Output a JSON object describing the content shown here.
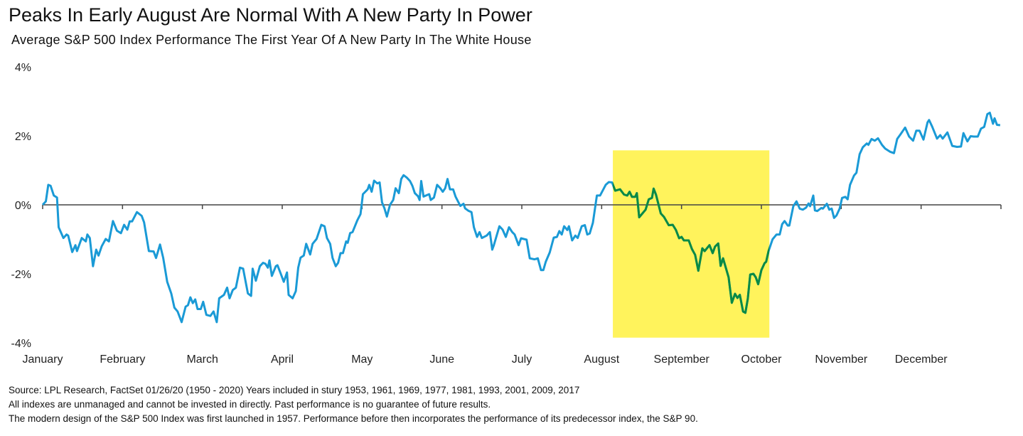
{
  "chart_data": {
    "type": "line",
    "title": "Peaks In Early August Are Normal With A New Party In Power",
    "subtitle": "Average S&P 500 Index Performance The First Year Of A New Party In The White House",
    "xlabel": "",
    "ylabel": "",
    "x_unit": "months elapsed since January 1",
    "xlim": [
      0,
      12
    ],
    "ylim": [
      -4,
      4
    ],
    "y_ticks": [
      {
        "value": 4,
        "label": "4%"
      },
      {
        "value": 2,
        "label": "2%"
      },
      {
        "value": 0,
        "label": "0%"
      },
      {
        "value": -2,
        "label": "-2%"
      },
      {
        "value": -4,
        "label": "-4%"
      }
    ],
    "x_ticks": [
      {
        "value": 0,
        "label": "January"
      },
      {
        "value": 1,
        "label": "February"
      },
      {
        "value": 2,
        "label": "March"
      },
      {
        "value": 3,
        "label": "April"
      },
      {
        "value": 4,
        "label": "May"
      },
      {
        "value": 5,
        "label": "June"
      },
      {
        "value": 6,
        "label": "July"
      },
      {
        "value": 7,
        "label": "August"
      },
      {
        "value": 8,
        "label": "September"
      },
      {
        "value": 9,
        "label": "October"
      },
      {
        "value": 10,
        "label": "November"
      },
      {
        "value": 11,
        "label": "December"
      },
      {
        "value": 12,
        "label": ""
      }
    ],
    "grid": false,
    "legend": "none",
    "colors": {
      "line": "#1a9ad6",
      "highlight_line": "#0a8a45",
      "highlight_fill": "#fff35c",
      "axis": "#444444"
    },
    "highlight": {
      "x_range": [
        7.14,
        9.1
      ],
      "y_range": [
        -3.85,
        1.58
      ]
    },
    "series": [
      {
        "x": [
          0.0,
          0.04,
          0.07,
          0.1,
          0.14,
          0.18,
          0.2,
          0.26,
          0.3,
          0.32,
          0.37,
          0.41,
          0.43,
          0.49,
          0.54,
          0.56,
          0.59,
          0.63,
          0.67,
          0.7,
          0.74,
          0.79,
          0.83,
          0.88,
          0.93,
          0.98,
          1.02,
          1.06,
          1.09,
          1.12,
          1.18,
          1.24,
          1.27,
          1.33,
          1.39,
          1.42,
          1.47,
          1.51,
          1.56,
          1.61,
          1.65,
          1.69,
          1.74,
          1.79,
          1.82,
          1.85,
          1.88,
          1.91,
          1.94,
          1.98,
          2.01,
          2.05,
          2.1,
          2.14,
          2.18,
          2.21,
          2.27,
          2.31,
          2.34,
          2.38,
          2.42,
          2.47,
          2.51,
          2.57,
          2.61,
          2.63,
          2.67,
          2.72,
          2.76,
          2.79,
          2.82,
          2.84,
          2.87,
          2.92,
          2.94,
          2.98,
          3.02,
          3.06,
          3.08,
          3.13,
          3.17,
          3.2,
          3.23,
          3.27,
          3.3,
          3.35,
          3.38,
          3.43,
          3.49,
          3.53,
          3.56,
          3.6,
          3.63,
          3.67,
          3.7,
          3.73,
          3.76,
          3.8,
          3.82,
          3.85,
          3.88,
          3.94,
          3.98,
          4.01,
          4.07,
          4.09,
          4.12,
          4.15,
          4.19,
          4.22,
          4.25,
          4.28,
          4.31,
          4.35,
          4.39,
          4.42,
          4.46,
          4.49,
          4.52,
          4.56,
          4.6,
          4.63,
          4.66,
          4.7,
          4.72,
          4.74,
          4.77,
          4.8,
          4.84,
          4.86,
          4.9,
          4.94,
          4.98,
          5.01,
          5.04,
          5.07,
          5.1,
          5.14,
          5.17,
          5.23,
          5.27,
          5.29,
          5.33,
          5.37,
          5.4,
          5.44,
          5.47,
          5.5,
          5.56,
          5.6,
          5.63,
          5.65,
          5.68,
          5.72,
          5.76,
          5.8,
          5.84,
          5.88,
          5.91,
          5.96,
          5.99,
          6.06,
          6.1,
          6.16,
          6.2,
          6.24,
          6.27,
          6.3,
          6.35,
          6.4,
          6.44,
          6.47,
          6.5,
          6.53,
          6.57,
          6.59,
          6.63,
          6.67,
          6.7,
          6.75,
          6.79,
          6.82,
          6.85,
          6.89,
          6.94,
          6.98,
          7.05,
          7.09,
          7.13,
          7.17,
          7.23,
          7.28,
          7.32,
          7.35,
          7.38,
          7.42,
          7.44,
          7.47,
          7.55,
          7.59,
          7.63,
          7.65,
          7.68,
          7.74,
          7.78,
          7.84,
          7.89,
          7.93,
          7.97,
          8.0,
          8.03,
          8.09,
          8.13,
          8.17,
          8.21,
          8.26,
          8.29,
          8.35,
          8.39,
          8.42,
          8.46,
          8.49,
          8.52,
          8.59,
          8.63,
          8.67,
          8.7,
          8.73,
          8.77,
          8.8,
          8.83,
          8.86,
          8.9,
          8.93,
          8.96,
          9.0,
          9.04,
          9.06,
          9.09,
          9.14,
          9.19,
          9.23,
          9.26,
          9.29,
          9.33,
          9.35,
          9.4,
          9.44,
          9.48,
          9.52,
          9.56,
          9.59,
          9.61,
          9.65,
          9.67,
          9.7,
          9.75,
          9.77,
          9.82,
          9.85,
          9.88,
          9.91,
          9.94,
          9.98,
          10.01,
          10.05,
          10.08,
          10.11,
          10.16,
          10.19,
          10.23,
          10.27,
          10.32,
          10.34,
          10.38,
          10.42,
          10.46,
          10.51,
          10.55,
          10.61,
          10.66,
          10.7,
          10.74,
          10.8,
          10.85,
          10.9,
          10.94,
          10.98,
          11.03,
          11.08,
          11.1,
          11.14,
          11.2,
          11.24,
          11.27,
          11.33,
          11.39,
          11.45,
          11.5,
          11.53,
          11.58,
          11.62,
          11.66,
          11.71,
          11.75,
          11.79,
          11.83,
          11.86,
          11.9,
          11.92,
          11.95,
          11.99
        ],
        "y": [
          0,
          0.1,
          0.58,
          0.55,
          0.27,
          0.21,
          -0.65,
          -0.96,
          -0.86,
          -0.89,
          -1.37,
          -1.17,
          -1.34,
          -0.96,
          -1.06,
          -0.86,
          -0.96,
          -1.78,
          -1.3,
          -1.47,
          -1.2,
          -0.99,
          -1.06,
          -0.47,
          -0.75,
          -0.82,
          -0.58,
          -0.72,
          -0.48,
          -0.48,
          -0.21,
          -0.32,
          -0.51,
          -1.34,
          -1.35,
          -1.54,
          -1.15,
          -1.54,
          -2.23,
          -2.57,
          -2.98,
          -3.09,
          -3.4,
          -2.95,
          -2.91,
          -2.68,
          -2.85,
          -2.74,
          -3.02,
          -3.02,
          -2.81,
          -3.19,
          -3.22,
          -3.09,
          -3.4,
          -2.71,
          -2.61,
          -2.4,
          -2.71,
          -2.47,
          -2.4,
          -1.82,
          -1.85,
          -2.57,
          -2.64,
          -1.85,
          -2.2,
          -1.78,
          -1.68,
          -1.71,
          -1.82,
          -1.61,
          -2.06,
          -1.78,
          -1.75,
          -1.99,
          -2.23,
          -1.96,
          -2.61,
          -2.71,
          -2.5,
          -1.82,
          -1.53,
          -1.47,
          -1.13,
          -1.44,
          -1.13,
          -0.99,
          -0.58,
          -0.62,
          -0.96,
          -1.13,
          -1.54,
          -1.78,
          -1.68,
          -1.4,
          -1.4,
          -1.06,
          -1.1,
          -0.82,
          -0.79,
          -0.45,
          -0.27,
          0.31,
          0.45,
          0.58,
          0.38,
          0.7,
          0.62,
          0.65,
          0.07,
          -0.1,
          -0.34,
          0.0,
          0.14,
          0.48,
          0.34,
          0.75,
          0.86,
          0.79,
          0.69,
          0.55,
          0.34,
          0.25,
          0.14,
          0.69,
          0.24,
          0.27,
          0.31,
          0.14,
          0.21,
          0.58,
          0.48,
          0.38,
          0.48,
          0.75,
          0.45,
          0.45,
          0.24,
          -0.03,
          0.03,
          -0.1,
          -0.17,
          -0.21,
          -0.65,
          -0.93,
          -0.79,
          -0.96,
          -0.89,
          -0.79,
          -1.3,
          -1.17,
          -0.93,
          -0.62,
          -0.72,
          -0.93,
          -0.65,
          -0.79,
          -0.86,
          -1.17,
          -0.97,
          -1.01,
          -1.55,
          -1.58,
          -1.55,
          -1.89,
          -1.89,
          -1.65,
          -1.38,
          -0.95,
          -0.93,
          -0.76,
          -0.86,
          -0.62,
          -0.73,
          -0.62,
          -1.03,
          -0.89,
          -0.96,
          -0.62,
          -0.59,
          -0.86,
          -0.83,
          -0.52,
          0.27,
          0.27,
          0.58,
          0.66,
          0.65,
          0.41,
          0.45,
          0.3,
          0.27,
          0.38,
          0.23,
          0.23,
          0.34,
          -0.36,
          -0.14,
          0.16,
          0.2,
          0.47,
          0.3,
          -0.25,
          -0.35,
          -0.59,
          -0.58,
          -0.73,
          -0.97,
          -0.93,
          -1.03,
          -1.03,
          -1.28,
          -1.45,
          -1.91,
          -1.26,
          -1.34,
          -1.17,
          -1.4,
          -1.21,
          -1.12,
          -1.77,
          -1.55,
          -2.1,
          -2.84,
          -2.58,
          -2.7,
          -2.61,
          -3.09,
          -3.13,
          -2.72,
          -2.02,
          -2.0,
          -2.1,
          -2.3,
          -1.89,
          -1.69,
          -1.65,
          -1.34,
          -1.0,
          -0.86,
          -0.86,
          -0.56,
          -0.47,
          -0.6,
          -0.6,
          -0.04,
          0.1,
          -0.11,
          -0.14,
          -0.08,
          0.04,
          -0.04,
          0.27,
          -0.16,
          -0.18,
          -0.09,
          -0.11,
          0.03,
          -0.14,
          -0.11,
          -0.38,
          -0.31,
          -0.11,
          0.2,
          0.23,
          0.16,
          0.58,
          0.85,
          0.93,
          1.47,
          1.67,
          1.78,
          1.74,
          1.91,
          1.86,
          1.93,
          1.74,
          1.63,
          1.54,
          1.5,
          1.91,
          2.04,
          2.24,
          1.98,
          1.86,
          2.15,
          2.15,
          1.89,
          2.39,
          2.46,
          2.26,
          1.92,
          2.02,
          1.92,
          2.1,
          1.71,
          1.68,
          1.69,
          2.08,
          1.84,
          1.99,
          1.98,
          1.98,
          2.21,
          2.26,
          2.63,
          2.67,
          2.35,
          2.51,
          2.32,
          2.31
        ]
      }
    ]
  },
  "footer": {
    "source": "Source: LPL Research, FactSet 01/26/20 (1950 - 2020)    Years included in stury 1953, 1961, 1969, 1977, 1981, 1993, 2001, 2009, 2017",
    "disclaimer": "All indexes are unmanaged and cannot be invested in directly. Past performance is no guarantee of future results.",
    "note": "The modern design of the S&P 500 Index was first launched in 1957. Performance before then incorporates the performance of its  predecessor index, the S&P 90."
  }
}
